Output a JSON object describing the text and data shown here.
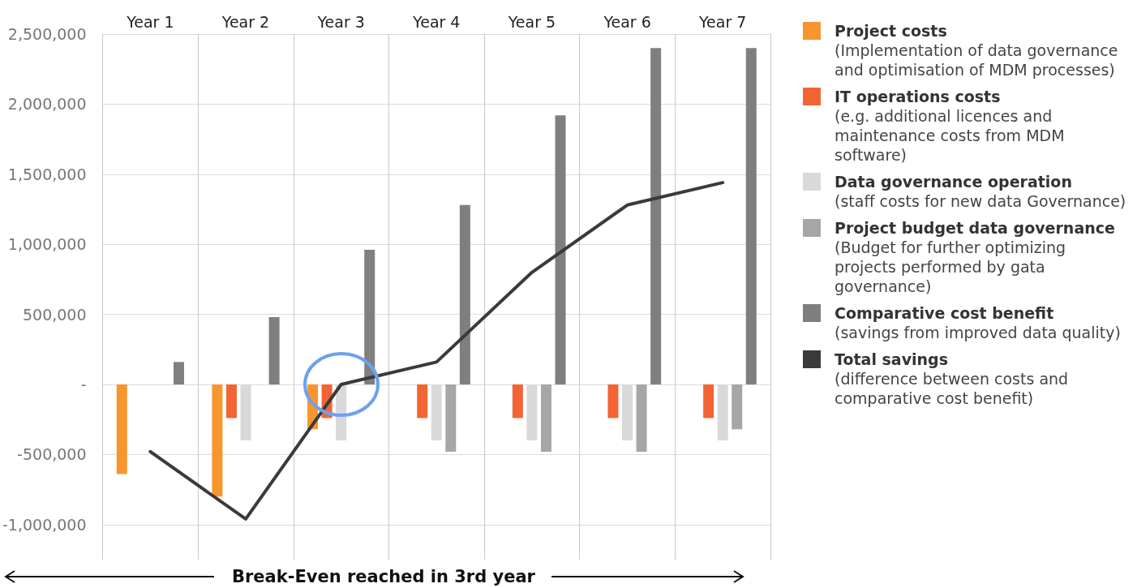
{
  "chart_data": {
    "type": "bar",
    "categories": [
      "Year 1",
      "Year 2",
      "Year 3",
      "Year 4",
      "Year 5",
      "Year 6",
      "Year 7"
    ],
    "series": [
      {
        "name": "Project costs",
        "color": "#f7962f",
        "values": [
          -640000,
          -800000,
          -320000,
          null,
          null,
          null,
          null
        ]
      },
      {
        "name": "IT operations costs",
        "color": "#f26434",
        "values": [
          null,
          -240000,
          -240000,
          -240000,
          -240000,
          -240000,
          -240000
        ]
      },
      {
        "name": "Data governance operation",
        "color": "#d9d9d9",
        "values": [
          null,
          -400000,
          -400000,
          -400000,
          -400000,
          -400000,
          -400000
        ]
      },
      {
        "name": "Project budget data governance",
        "color": "#a6a6a6",
        "values": [
          null,
          null,
          null,
          -480000,
          -480000,
          -480000,
          -320000
        ]
      },
      {
        "name": "Comparative cost benefit",
        "color": "#7f7f7f",
        "values": [
          160000,
          480000,
          960000,
          1280000,
          1920000,
          2400000,
          2400000
        ]
      },
      {
        "name": "Total savings",
        "type": "line",
        "color": "#3a3a3a",
        "values": [
          -480000,
          -960000,
          0,
          160000,
          800000,
          1280000,
          1440000
        ]
      }
    ],
    "ylim": [
      -1250000,
      2500000
    ],
    "yticks": [
      {
        "value": -1000000,
        "label": "-1,000,000"
      },
      {
        "value": -500000,
        "label": "-500,000"
      },
      {
        "value": 0,
        "label": "-"
      },
      {
        "value": 500000,
        "label": "500,000"
      },
      {
        "value": 1000000,
        "label": "1,000,000"
      },
      {
        "value": 1500000,
        "label": "1,500,000"
      },
      {
        "value": 2000000,
        "label": "2,000,000"
      },
      {
        "value": 2500000,
        "label": "2,500,000"
      }
    ],
    "grid": true,
    "legend": "right",
    "marker": "none",
    "line_style": "solid",
    "annotations": [
      "(Implementation of data governance and optimisation of MDM processes)",
      "(e.g. additional licences and maintenance costs from MDM software)",
      "(staff costs for new data Governance)",
      "(Budget for further optimizing projects performed by gata governance)",
      "(savings from improved data quality)",
      "(difference between costs and comparative cost benefit)",
      "Break-Even reached in 3rd year"
    ]
  }
}
